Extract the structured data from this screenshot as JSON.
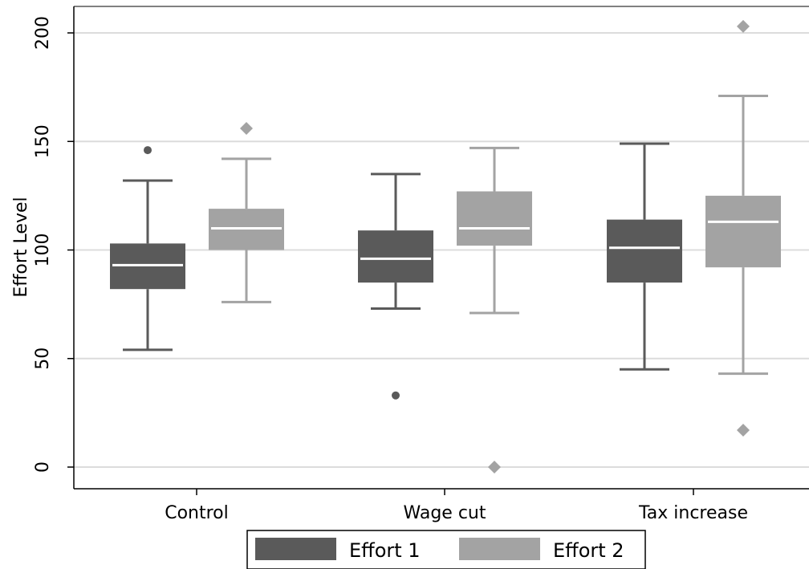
{
  "chart_data": {
    "type": "box",
    "ylabel": "Effort Level",
    "xlabel": "",
    "ylim": [
      -10,
      212
    ],
    "yticks": [
      0,
      50,
      100,
      150,
      200
    ],
    "grid": true,
    "legend_position": "bottom",
    "categories": [
      "Control",
      "Wage cut",
      "Tax increase"
    ],
    "series": [
      {
        "name": "Effort 1",
        "color": "#5a5a5a",
        "outlier_marker": "circle",
        "boxes": [
          {
            "whisker_low": 54,
            "q1": 82,
            "median": 93,
            "q3": 103,
            "whisker_high": 132,
            "outliers": [
              146
            ]
          },
          {
            "whisker_low": 73,
            "q1": 85,
            "median": 96,
            "q3": 109,
            "whisker_high": 135,
            "outliers": [
              33
            ]
          },
          {
            "whisker_low": 45,
            "q1": 85,
            "median": 101,
            "q3": 114,
            "whisker_high": 149,
            "outliers": []
          }
        ]
      },
      {
        "name": "Effort 2",
        "color": "#a3a3a3",
        "outlier_marker": "diamond",
        "boxes": [
          {
            "whisker_low": 76,
            "q1": 100,
            "median": 110,
            "q3": 119,
            "whisker_high": 142,
            "outliers": [
              156
            ]
          },
          {
            "whisker_low": 71,
            "q1": 102,
            "median": 110,
            "q3": 127,
            "whisker_high": 147,
            "outliers": [
              0
            ]
          },
          {
            "whisker_low": 43,
            "q1": 92,
            "median": 113,
            "q3": 125,
            "whisker_high": 171,
            "outliers": [
              203,
              17
            ]
          }
        ]
      }
    ]
  }
}
